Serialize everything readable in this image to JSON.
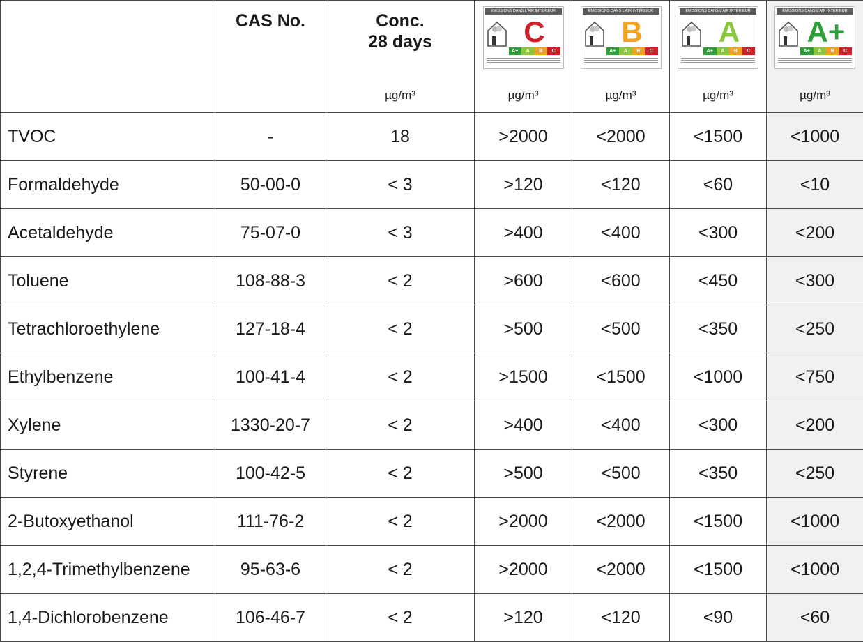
{
  "header": {
    "cas": "CAS No.",
    "conc_line1": "Conc.",
    "conc_line2": "28 days",
    "conc_unit": "µg/m³",
    "class_unit": "µg/m³",
    "badge_caption": "ÉMISSIONS DANS L'AIR INTÉRIEUR",
    "scale": [
      "A+",
      "A",
      "B",
      "C"
    ],
    "classes": [
      {
        "grade": "C",
        "color": "#d0202a"
      },
      {
        "grade": "B",
        "color": "#f2a21d"
      },
      {
        "grade": "A",
        "color": "#8cc63e"
      },
      {
        "grade": "A+",
        "color": "#2e9e3a"
      }
    ]
  },
  "rows": [
    {
      "name": "TVOC",
      "cas": "-",
      "conc": "18",
      "c": ">2000",
      "b": "<2000",
      "a": "<1500",
      "ap": "<1000"
    },
    {
      "name": "Formaldehyde",
      "cas": "50-00-0",
      "conc": "< 3",
      "c": ">120",
      "b": "<120",
      "a": "<60",
      "ap": "<10"
    },
    {
      "name": "Acetaldehyde",
      "cas": "75-07-0",
      "conc": "< 3",
      "c": ">400",
      "b": "<400",
      "a": "<300",
      "ap": "<200"
    },
    {
      "name": "Toluene",
      "cas": "108-88-3",
      "conc": "< 2",
      "c": ">600",
      "b": "<600",
      "a": "<450",
      "ap": "<300"
    },
    {
      "name": "Tetrachloroethylene",
      "cas": "127-18-4",
      "conc": "< 2",
      "c": ">500",
      "b": "<500",
      "a": "<350",
      "ap": "<250"
    },
    {
      "name": "Ethylbenzene",
      "cas": "100-41-4",
      "conc": "< 2",
      "c": ">1500",
      "b": "<1500",
      "a": "<1000",
      "ap": "<750"
    },
    {
      "name": "Xylene",
      "cas": "1330-20-7",
      "conc": "< 2",
      "c": ">400",
      "b": "<400",
      "a": "<300",
      "ap": "<200"
    },
    {
      "name": "Styrene",
      "cas": "100-42-5",
      "conc": "< 2",
      "c": ">500",
      "b": "<500",
      "a": "<350",
      "ap": "<250"
    },
    {
      "name": "2-Butoxyethanol",
      "cas": "111-76-2",
      "conc": "< 2",
      "c": ">2000",
      "b": "<2000",
      "a": "<1500",
      "ap": "<1000"
    },
    {
      "name": "1,2,4-Trimethylbenzene",
      "cas": "95-63-6",
      "conc": "< 2",
      "c": ">2000",
      "b": "<2000",
      "a": "<1500",
      "ap": "<1000"
    },
    {
      "name": "1,4-Dichlorobenzene",
      "cas": "106-46-7",
      "conc": "< 2",
      "c": ">120",
      "b": "<120",
      "a": "<90",
      "ap": "<60"
    }
  ]
}
